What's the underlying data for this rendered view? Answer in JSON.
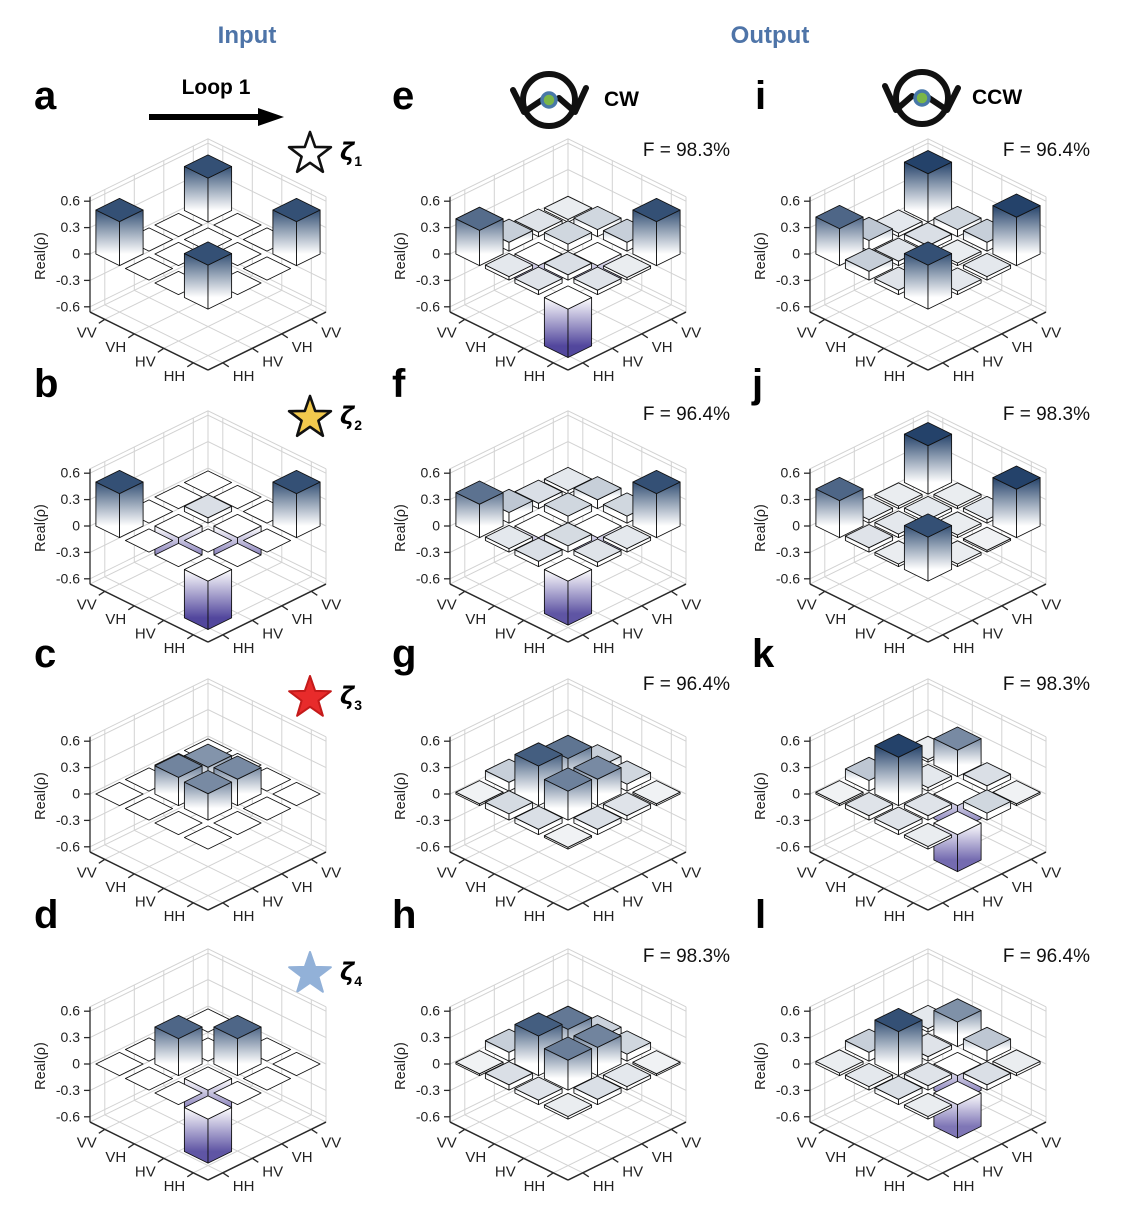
{
  "header": {
    "input_label": "Input",
    "output_label": "Output",
    "loop_label": "Loop 1",
    "cw_label": "CW",
    "ccw_label": "CCW",
    "accent_color": "#4e74a8"
  },
  "axes": {
    "z_label": "Real(ρ)",
    "z_ticks": [
      "0.6",
      "0.3",
      "0",
      "-0.3",
      "-0.6"
    ],
    "z_tick_values": [
      0.6,
      0.3,
      0,
      -0.3,
      -0.6
    ],
    "z_range": [
      -0.6,
      0.6
    ],
    "x_labels": [
      "HH",
      "HV",
      "VH",
      "VV"
    ],
    "y_labels": [
      "HH",
      "HV",
      "VH",
      "VV"
    ]
  },
  "colors": {
    "bar_positive_max": "#14345f",
    "bar_negative_max": "#463a96",
    "bar_zero": "#ffffff",
    "edge": "#111111",
    "grid": "#d2d2d2",
    "axis_dark": "#2a2a2a",
    "icon_black": "#111111",
    "icon_dot_green": "#7ab648",
    "icon_dot_ring": "#4878a8"
  },
  "input_states": [
    {
      "panel": "a",
      "state_symbol": "ζ",
      "state_sub": "1",
      "star_fill": "#ffffff",
      "star_stroke": "#111111"
    },
    {
      "panel": "b",
      "state_symbol": "ζ",
      "state_sub": "2",
      "star_fill": "#f2c94d",
      "star_stroke": "#111111"
    },
    {
      "panel": "c",
      "state_symbol": "ζ",
      "state_sub": "3",
      "star_fill": "#e82b2b",
      "star_stroke": "#c41a1a"
    },
    {
      "panel": "d",
      "state_symbol": "ζ",
      "state_sub": "4",
      "star_fill": "#92b1d8",
      "star_stroke": "#92b1d8"
    }
  ],
  "chart_data": [
    {
      "type": "bar3d",
      "panel": "a",
      "group": "input",
      "matrix": [
        [
          0.5,
          0,
          0,
          0.5
        ],
        [
          0,
          0,
          0,
          0
        ],
        [
          0,
          0,
          0,
          0
        ],
        [
          0.5,
          0,
          0,
          0.5
        ]
      ]
    },
    {
      "type": "bar3d",
      "panel": "b",
      "group": "input",
      "matrix": [
        [
          -0.55,
          0,
          0,
          0.5
        ],
        [
          0,
          0,
          -0.32,
          0
        ],
        [
          0,
          -0.32,
          0.06,
          0
        ],
        [
          0.5,
          0,
          0,
          0
        ]
      ]
    },
    {
      "type": "bar3d",
      "panel": "c",
      "group": "input",
      "matrix": [
        [
          0,
          0,
          0,
          0
        ],
        [
          0,
          0.3,
          0.3,
          0
        ],
        [
          0,
          0.32,
          0.27,
          0
        ],
        [
          0,
          0,
          0,
          0
        ]
      ]
    },
    {
      "type": "bar3d",
      "panel": "d",
      "group": "input",
      "matrix": [
        [
          -0.5,
          0,
          0,
          0
        ],
        [
          0,
          -0.34,
          0.42,
          0
        ],
        [
          0,
          0.42,
          0,
          0
        ],
        [
          0,
          0,
          0,
          0
        ]
      ]
    },
    {
      "type": "bar3d",
      "panel": "e",
      "group": "cw-output",
      "fidelity_label": "F = 98.3%",
      "matrix": [
        [
          -0.55,
          0.05,
          0.03,
          0.5
        ],
        [
          0.05,
          0.06,
          -0.3,
          0.1
        ],
        [
          0.04,
          -0.3,
          0.08,
          0.08
        ],
        [
          0.4,
          0.1,
          0.05,
          0.03
        ]
      ]
    },
    {
      "type": "bar3d",
      "panel": "f",
      "group": "cw-output",
      "fidelity_label": "F = 96.4%",
      "matrix": [
        [
          -0.5,
          0.05,
          0.04,
          0.5
        ],
        [
          0.06,
          0.07,
          -0.28,
          0.08
        ],
        [
          0.04,
          -0.28,
          0.08,
          0.1
        ],
        [
          0.38,
          0.12,
          0.06,
          0.04
        ]
      ]
    },
    {
      "type": "bar3d",
      "panel": "g",
      "group": "cw-output",
      "fidelity_label": "F = 96.4%",
      "matrix": [
        [
          0.02,
          0.06,
          0.05,
          0.02
        ],
        [
          0.06,
          0.33,
          0.3,
          0.08
        ],
        [
          0.07,
          0.45,
          0.37,
          0.1
        ],
        [
          0.02,
          0.1,
          0.08,
          0.04
        ]
      ]
    },
    {
      "type": "bar3d",
      "panel": "h",
      "group": "cw-output",
      "fidelity_label": "F = 98.3%",
      "matrix": [
        [
          0.03,
          0.06,
          0.04,
          0.02
        ],
        [
          0.05,
          0.34,
          0.32,
          0.08
        ],
        [
          0.06,
          0.45,
          0.36,
          0.09
        ],
        [
          0.02,
          0.1,
          0.07,
          0.03
        ]
      ]
    },
    {
      "type": "bar3d",
      "panel": "i",
      "group": "ccw-output",
      "fidelity_label": "F = 96.4%",
      "matrix": [
        [
          0.5,
          0.04,
          0.04,
          0.55
        ],
        [
          0.05,
          0.04,
          0.03,
          0.1
        ],
        [
          0.1,
          0.05,
          0.06,
          0.08
        ],
        [
          0.42,
          0.12,
          0.04,
          0.55
        ]
      ]
    },
    {
      "type": "bar3d",
      "panel": "j",
      "group": "ccw-output",
      "fidelity_label": "F = 98.3%",
      "matrix": [
        [
          0.5,
          0.03,
          0.02,
          0.55
        ],
        [
          0.03,
          0.03,
          0.03,
          0.04
        ],
        [
          0.05,
          0.04,
          0.04,
          0.03
        ],
        [
          0.42,
          0.04,
          0.03,
          0.55
        ]
      ]
    },
    {
      "type": "bar3d",
      "panel": "k",
      "group": "ccw-output",
      "fidelity_label": "F = 98.3%",
      "matrix": [
        [
          0.03,
          -0.42,
          0.08,
          0.02
        ],
        [
          0.05,
          0.05,
          -0.28,
          0.06
        ],
        [
          0.05,
          0.55,
          0.04,
          0.3
        ],
        [
          0.02,
          0.12,
          0.05,
          0.03
        ]
      ]
    },
    {
      "type": "bar3d",
      "panel": "l",
      "group": "ccw-output",
      "fidelity_label": "F = 96.4%",
      "matrix": [
        [
          0.03,
          -0.38,
          0.06,
          0.03
        ],
        [
          0.06,
          0.05,
          -0.3,
          0.12
        ],
        [
          0.04,
          0.5,
          0.05,
          0.28
        ],
        [
          0.03,
          0.1,
          0.06,
          0.04
        ]
      ]
    }
  ]
}
